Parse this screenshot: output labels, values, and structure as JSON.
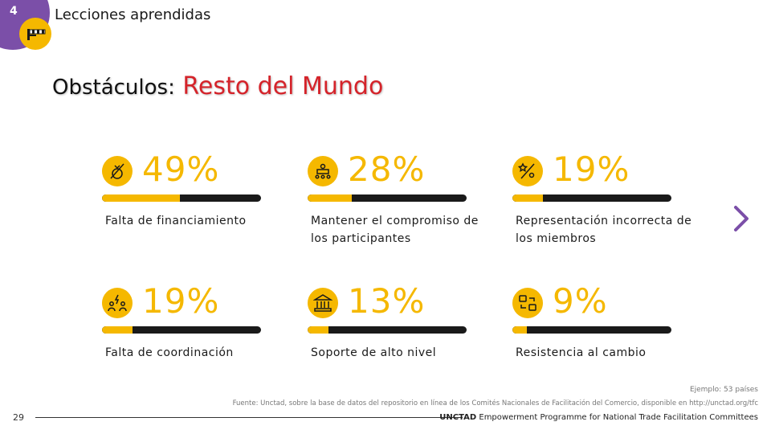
{
  "header": {
    "section_number": "4",
    "section_title": "Lecciones aprendidas"
  },
  "headline": {
    "prefix": "Obstáculos:",
    "highlight": "Resto del Mundo"
  },
  "stats": [
    {
      "percent": "49%",
      "value": 49,
      "label": "Falta de financiamiento",
      "icon": "moneybag-slash-icon"
    },
    {
      "percent": "28%",
      "value": 28,
      "label": "Mantener el compromiso de los participantes",
      "icon": "meeting-table-icon"
    },
    {
      "percent": "19%",
      "value": 19,
      "label": "Representación incorrecta de los miembros",
      "icon": "wrong-representation-icon"
    },
    {
      "percent": "19%",
      "value": 19,
      "label": "Falta de coordinación",
      "icon": "conflict-people-icon"
    },
    {
      "percent": "13%",
      "value": 13,
      "label": "Soporte de alto nivel",
      "icon": "government-building-icon"
    },
    {
      "percent": "9%",
      "value": 9,
      "label": "Resistencia al cambio",
      "icon": "change-arrows-icon"
    }
  ],
  "footer": {
    "sample_note": "Ejemplo: 53 países",
    "source": "Fuente: Unctad, sobre la base de datos del repositorio en línea de los Comités Nacionales de Facilitación del Comercio, disponible en http://unctad.org/tfc",
    "page_number": "29",
    "org_name": "UNCTAD",
    "org_program": "Empowerment Programme for National Trade Facilitation Committees"
  },
  "colors": {
    "accent": "#f5b800",
    "highlight": "#d5232a",
    "purple": "#7b4fa8",
    "track": "#1a1a1a"
  }
}
